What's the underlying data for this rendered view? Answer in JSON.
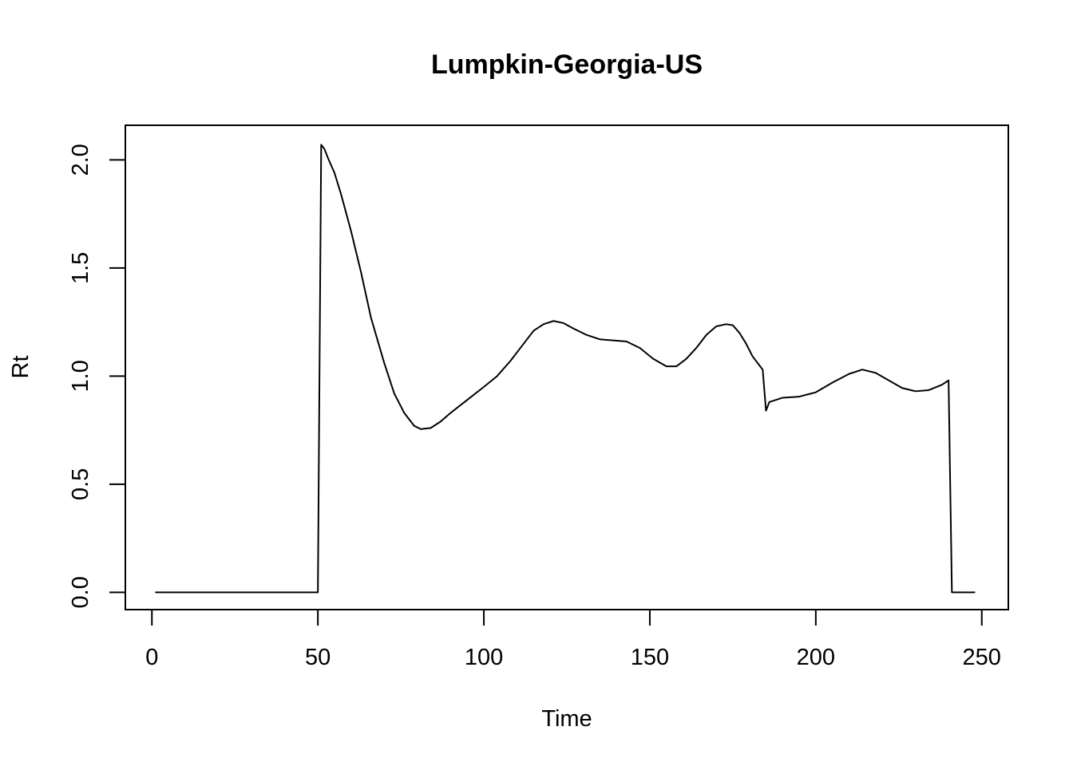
{
  "chart_data": {
    "type": "line",
    "title": "Lumpkin-Georgia-US",
    "xlabel": "Time",
    "ylabel": "Rt",
    "xlim": [
      -8,
      258
    ],
    "ylim": [
      -0.08,
      2.16
    ],
    "x_ticks": [
      0,
      50,
      100,
      150,
      200,
      250
    ],
    "y_ticks": [
      0.0,
      0.5,
      1.0,
      1.5,
      2.0
    ],
    "x_tick_labels": [
      "0",
      "50",
      "100",
      "150",
      "200",
      "250"
    ],
    "y_tick_labels": [
      "0.0",
      "0.5",
      "1.0",
      "1.5",
      "2.0"
    ],
    "grid": false,
    "line_color": "#000000",
    "series": [
      {
        "x": [
          1,
          10,
          20,
          30,
          40,
          50,
          51,
          52,
          53,
          55,
          57,
          60,
          63,
          66,
          70,
          73,
          76,
          79,
          81,
          84,
          87,
          90,
          95,
          100,
          104,
          108,
          112,
          115,
          118,
          121,
          124,
          127,
          131,
          135,
          139,
          143,
          147,
          151,
          155,
          158,
          161,
          164,
          167,
          170,
          173,
          175,
          177,
          179,
          181,
          184,
          185,
          186,
          188,
          190,
          195,
          200,
          205,
          210,
          214,
          218,
          222,
          226,
          230,
          234,
          238,
          240,
          241,
          242,
          245,
          248
        ],
        "y": [
          0,
          0,
          0,
          0,
          0,
          0,
          2.07,
          2.05,
          2.01,
          1.94,
          1.84,
          1.67,
          1.48,
          1.27,
          1.06,
          0.92,
          0.83,
          0.77,
          0.755,
          0.76,
          0.79,
          0.83,
          0.89,
          0.95,
          1.0,
          1.07,
          1.15,
          1.21,
          1.24,
          1.255,
          1.245,
          1.22,
          1.19,
          1.17,
          1.165,
          1.16,
          1.13,
          1.08,
          1.045,
          1.045,
          1.08,
          1.13,
          1.19,
          1.23,
          1.24,
          1.235,
          1.2,
          1.15,
          1.09,
          1.03,
          0.84,
          0.88,
          0.89,
          0.9,
          0.905,
          0.925,
          0.97,
          1.01,
          1.03,
          1.015,
          0.98,
          0.945,
          0.93,
          0.935,
          0.96,
          0.98,
          0.0,
          0,
          0,
          0
        ]
      }
    ]
  }
}
